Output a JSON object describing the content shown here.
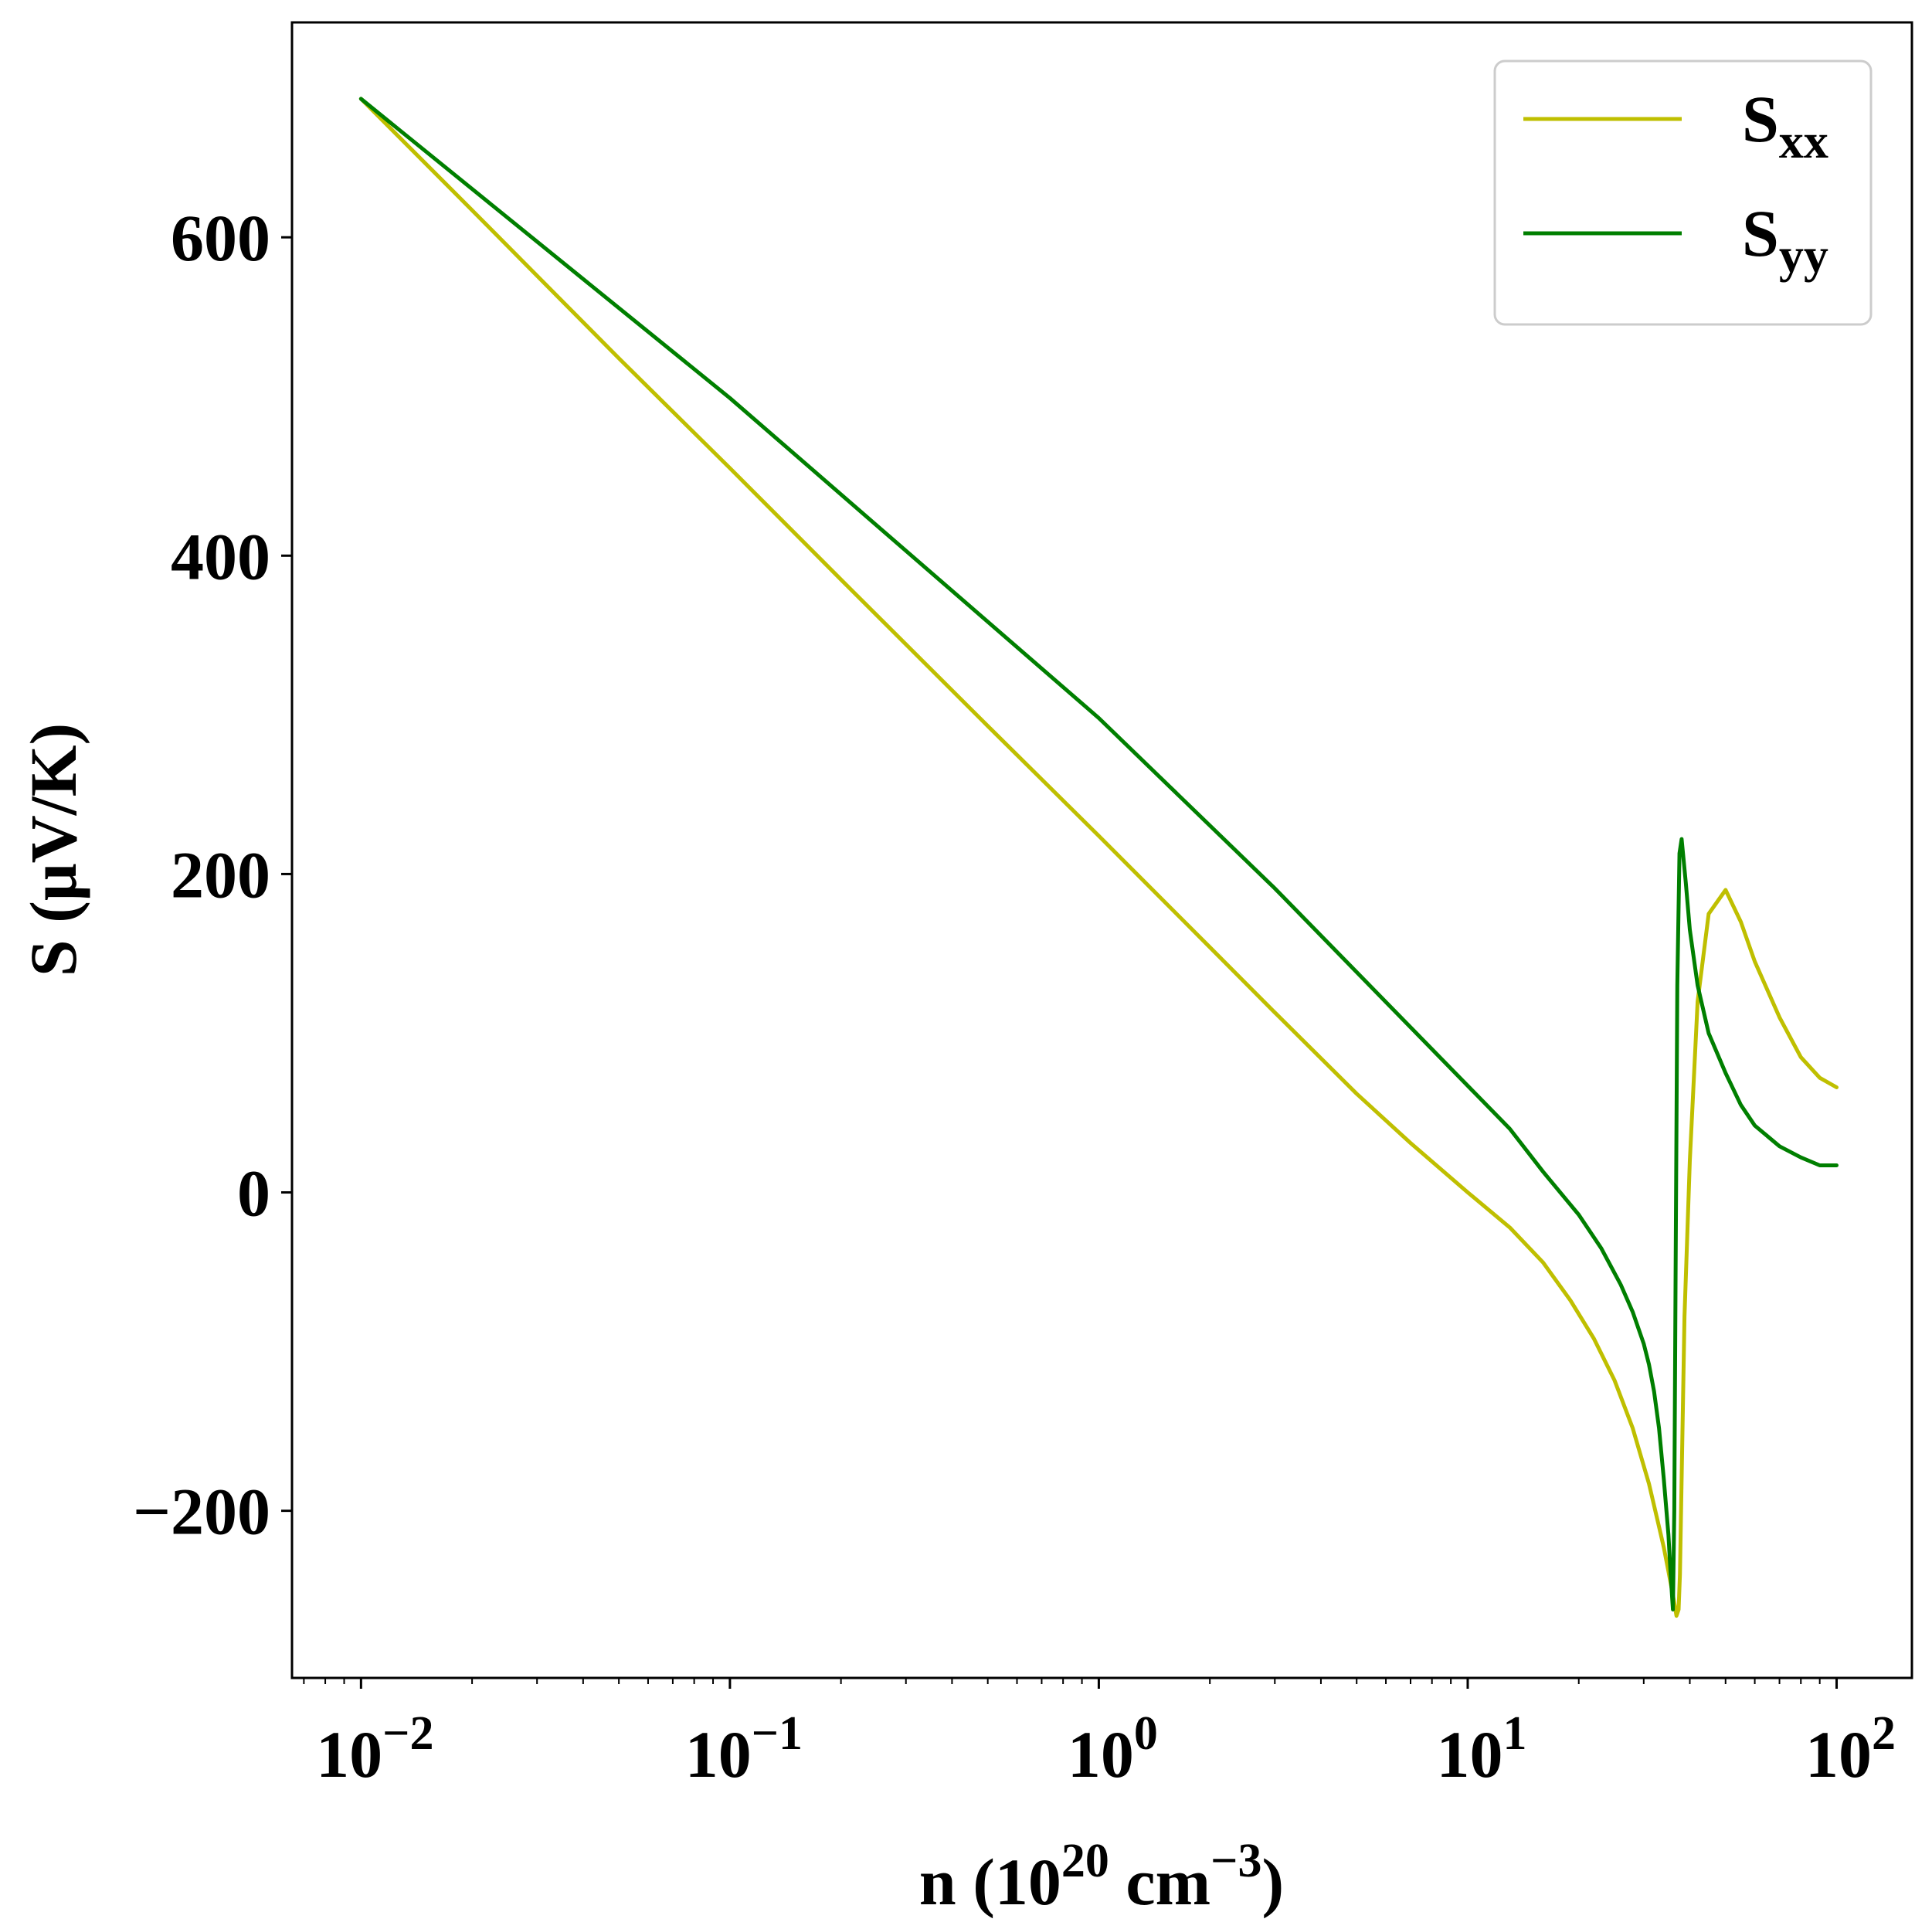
{
  "chart_data": {
    "type": "line",
    "title": "",
    "xlabel": {
      "base": "n (10",
      "exp1": "20",
      "mid": " cm",
      "exp2": "−3",
      "end": ")"
    },
    "ylabel": "S (μV/K)",
    "xscale": "log",
    "xlim": [
      0.0065,
      160
    ],
    "ylim": [
      -305,
      735
    ],
    "grid": false,
    "legend_position": "top-right",
    "x_ticks": [
      {
        "value": 0.01,
        "base": "10",
        "exp": "−2"
      },
      {
        "value": 0.1,
        "base": "10",
        "exp": "−1"
      },
      {
        "value": 1,
        "base": "10",
        "exp": "0"
      },
      {
        "value": 10,
        "base": "10",
        "exp": "1"
      },
      {
        "value": 100,
        "base": "10",
        "exp": "2"
      }
    ],
    "y_ticks": [
      {
        "value": -200,
        "label": "−200"
      },
      {
        "value": 0,
        "label": "0"
      },
      {
        "value": 200,
        "label": "200"
      },
      {
        "value": 400,
        "label": "400"
      },
      {
        "value": 600,
        "label": "600"
      }
    ],
    "series": [
      {
        "name": {
          "base": "S",
          "sub": "xx"
        },
        "color": "#bfbf00",
        "x": [
          0.01,
          0.02,
          0.05,
          0.1,
          0.2,
          0.5,
          1,
          2,
          3,
          5,
          7,
          10,
          13,
          16,
          19,
          22,
          25,
          28,
          31,
          33,
          34,
          35,
          36,
          36.5,
          36.8,
          37.3,
          37.6,
          38,
          38.7,
          40,
          42,
          45,
          50,
          55,
          60,
          70,
          80,
          90,
          100
        ],
        "y": [
          687,
          617,
          524,
          455,
          385,
          293,
          224,
          154,
          113,
          62,
          31,
          0,
          -22,
          -44,
          -68,
          -92,
          -118,
          -148,
          -183,
          -210,
          -223,
          -238,
          -253,
          -261,
          -266,
          -262,
          -240,
          -180,
          -78,
          20,
          120,
          175,
          190,
          170,
          145,
          110,
          85,
          72,
          66
        ]
      },
      {
        "name": {
          "base": "S",
          "sub": "yy"
        },
        "color": "#007f00",
        "x": [
          0.01,
          0.1,
          1,
          3,
          10,
          13,
          16,
          20,
          23,
          26,
          28,
          30,
          31,
          32,
          33,
          34,
          35,
          35.5,
          36,
          36.3,
          36.6,
          37,
          37.5,
          38,
          39,
          40,
          42,
          45,
          50,
          55,
          60,
          70,
          80,
          90,
          95,
          100
        ],
        "y": [
          687,
          499,
          298,
          191,
          67,
          40,
          13,
          -14,
          -35,
          -58,
          -75,
          -95,
          -108,
          -125,
          -148,
          -180,
          -215,
          -240,
          -262,
          -200,
          -50,
          130,
          213,
          222,
          195,
          165,
          130,
          100,
          75,
          55,
          42,
          29,
          22,
          17,
          17,
          17
        ]
      }
    ]
  }
}
